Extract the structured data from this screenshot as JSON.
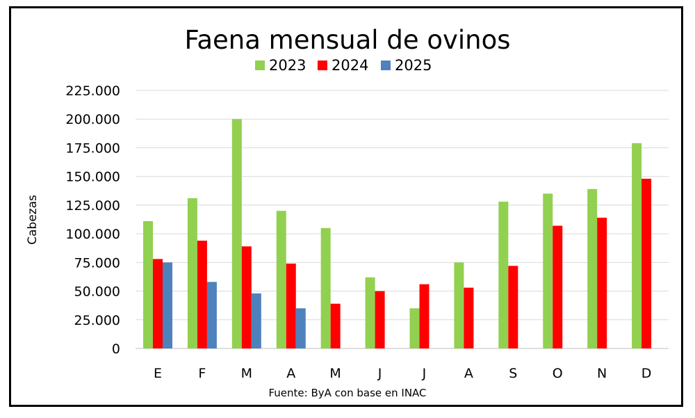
{
  "chart_data": {
    "type": "bar",
    "title": "Faena mensual de ovinos",
    "ylabel": "Cabezas",
    "xlabel": "",
    "source": "Fuente: ByA con base en INAC",
    "categories": [
      "E",
      "F",
      "M",
      "A",
      "M",
      "J",
      "J",
      "A",
      "S",
      "O",
      "N",
      "D"
    ],
    "ylim": [
      0,
      225000
    ],
    "yticks": [
      0,
      25000,
      50000,
      75000,
      100000,
      125000,
      150000,
      175000,
      200000,
      225000
    ],
    "ytick_labels": [
      "0",
      "25.000",
      "50.000",
      "75.000",
      "100.000",
      "125.000",
      "150.000",
      "175.000",
      "200.000",
      "225.000"
    ],
    "grid": true,
    "legend_position": "top",
    "series": [
      {
        "name": "2023",
        "color": "#92d050",
        "values": [
          111000,
          131000,
          200000,
          120000,
          105000,
          62000,
          35000,
          75000,
          128000,
          135000,
          139000,
          179000
        ]
      },
      {
        "name": "2024",
        "color": "#ff0000",
        "values": [
          78000,
          94000,
          89000,
          74000,
          39000,
          50000,
          56000,
          53000,
          72000,
          107000,
          114000,
          148000
        ]
      },
      {
        "name": "2025",
        "color": "#4f81bd",
        "values": [
          75000,
          58000,
          48000,
          35000,
          null,
          null,
          null,
          null,
          null,
          null,
          null,
          null
        ]
      }
    ]
  }
}
